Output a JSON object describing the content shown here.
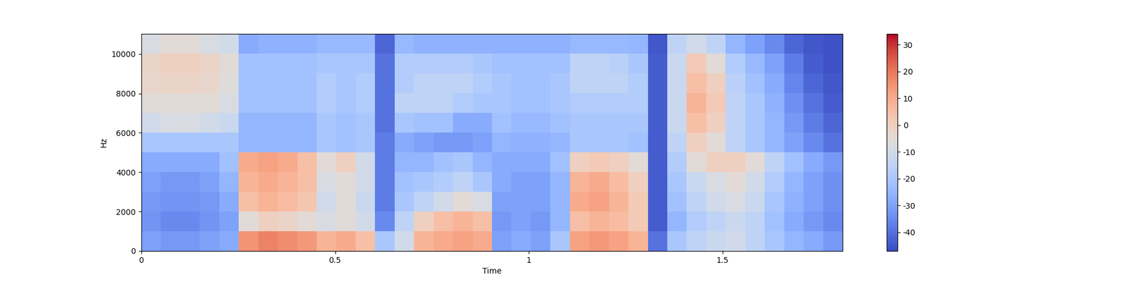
{
  "chart_data": {
    "type": "spectrogram",
    "x_label": "Time",
    "y_label": "Hz",
    "xlim": [
      0,
      1.81
    ],
    "ylim": [
      0,
      11025
    ],
    "xticks": [
      0,
      0.5,
      1,
      1.5
    ],
    "yticks": [
      0,
      2000,
      4000,
      6000,
      8000,
      10000
    ],
    "colorbar_range": [
      -47,
      34
    ],
    "colorbar_ticks": [
      -40,
      -30,
      -20,
      -10,
      0,
      10,
      20,
      30
    ],
    "cells": [
      [
        -30,
        -32,
        -32,
        -30,
        -28,
        15,
        18,
        16,
        14,
        8,
        10,
        5,
        -20,
        -10,
        8,
        10,
        12,
        10,
        -30,
        -28,
        -30,
        -20,
        12,
        14,
        12,
        8,
        -40,
        -20,
        -15,
        -12,
        -10,
        -15,
        -20,
        -25,
        -28,
        -32
      ],
      [
        -33,
        -35,
        -35,
        -33,
        -30,
        -5,
        0,
        -2,
        -5,
        -8,
        -5,
        -10,
        -35,
        -15,
        0,
        5,
        8,
        5,
        -32,
        -30,
        -32,
        -25,
        5,
        8,
        6,
        2,
        -44,
        -25,
        -18,
        -15,
        -12,
        -15,
        -22,
        -28,
        -32,
        -35
      ],
      [
        -32,
        -33,
        -33,
        -32,
        -28,
        5,
        8,
        6,
        3,
        -10,
        -5,
        -12,
        -38,
        -20,
        -15,
        -10,
        -5,
        -8,
        -30,
        -30,
        -30,
        -25,
        10,
        12,
        8,
        2,
        -44,
        -22,
        -15,
        -10,
        -8,
        -12,
        -20,
        -26,
        -30,
        -34
      ],
      [
        -30,
        -32,
        -32,
        -30,
        -25,
        8,
        10,
        8,
        5,
        -8,
        -5,
        -10,
        -38,
        -22,
        -20,
        -18,
        -15,
        -20,
        -28,
        -30,
        -30,
        -25,
        8,
        10,
        6,
        0,
        -44,
        -20,
        -12,
        -8,
        -5,
        -10,
        -18,
        -25,
        -30,
        -34
      ],
      [
        -28,
        -28,
        -28,
        -28,
        -22,
        10,
        12,
        10,
        5,
        -5,
        0,
        -10,
        -38,
        -25,
        -25,
        -22,
        -20,
        -25,
        -28,
        -28,
        -28,
        -22,
        0,
        2,
        0,
        -5,
        -44,
        -18,
        -5,
        0,
        0,
        -5,
        -15,
        -22,
        -28,
        -32
      ],
      [
        -20,
        -20,
        -20,
        -20,
        -20,
        -25,
        -25,
        -25,
        -25,
        -20,
        -22,
        -20,
        -38,
        -28,
        -30,
        -32,
        -32,
        -30,
        -25,
        -26,
        -26,
        -25,
        -20,
        -20,
        -20,
        -22,
        -44,
        -15,
        0,
        -5,
        -15,
        -20,
        -25,
        -30,
        -35,
        -40
      ],
      [
        -10,
        -8,
        -8,
        -10,
        -12,
        -25,
        -25,
        -25,
        -25,
        -20,
        -22,
        -20,
        -40,
        -20,
        -22,
        -22,
        -28,
        -28,
        -22,
        -24,
        -24,
        -22,
        -20,
        -20,
        -20,
        -20,
        -44,
        -12,
        5,
        0,
        -15,
        -20,
        -25,
        -32,
        -38,
        -42
      ],
      [
        -5,
        -5,
        -5,
        -5,
        -8,
        -22,
        -22,
        -22,
        -22,
        -18,
        -20,
        -18,
        -40,
        -15,
        -15,
        -15,
        -18,
        -20,
        -20,
        -22,
        -22,
        -20,
        -18,
        -18,
        -18,
        -18,
        -44,
        -12,
        8,
        2,
        -15,
        -20,
        -26,
        -34,
        -40,
        -44
      ],
      [
        -3,
        -2,
        -2,
        -3,
        -6,
        -22,
        -22,
        -22,
        -22,
        -18,
        -20,
        -18,
        -40,
        -18,
        -15,
        -15,
        -15,
        -18,
        -20,
        -22,
        -22,
        -20,
        -15,
        -15,
        -15,
        -18,
        -44,
        -12,
        5,
        0,
        -16,
        -22,
        -28,
        -36,
        -42,
        -45
      ],
      [
        -2,
        0,
        0,
        -2,
        -5,
        -22,
        -22,
        -22,
        -22,
        -20,
        -20,
        -20,
        -40,
        -18,
        -18,
        -18,
        -18,
        -20,
        -22,
        -22,
        -22,
        -22,
        -15,
        -15,
        -16,
        -20,
        -44,
        -12,
        2,
        -5,
        -18,
        -24,
        -30,
        -38,
        -44,
        -46
      ],
      [
        -8,
        -5,
        -5,
        -8,
        -10,
        -28,
        -26,
        -26,
        -26,
        -24,
        -24,
        -24,
        -42,
        -24,
        -26,
        -26,
        -26,
        -26,
        -26,
        -26,
        -26,
        -26,
        -24,
        -24,
        -24,
        -25,
        -45,
        -15,
        -10,
        -15,
        -25,
        -30,
        -35,
        -42,
        -45,
        -46
      ]
    ]
  }
}
